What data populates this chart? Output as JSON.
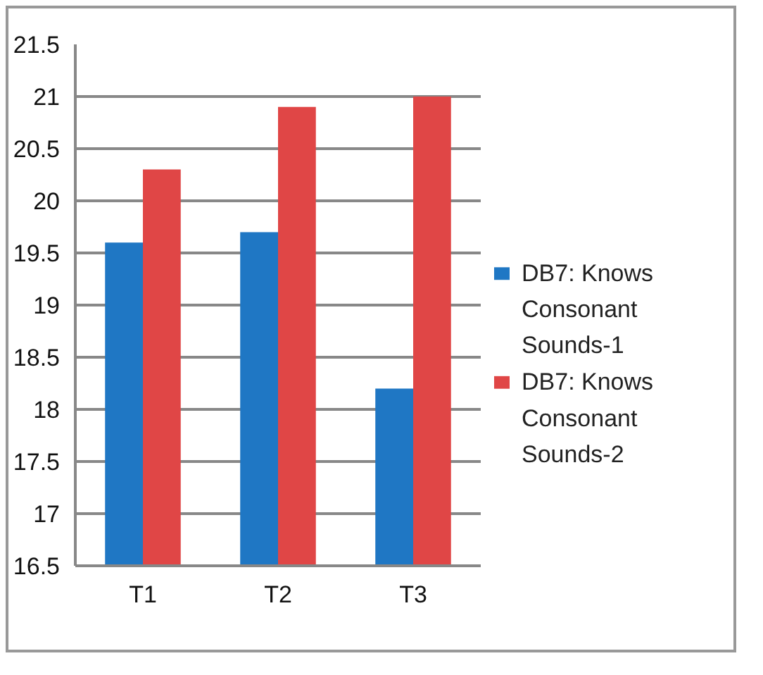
{
  "chart_data": {
    "type": "bar",
    "categories": [
      "T1",
      "T2",
      "T3"
    ],
    "series": [
      {
        "name": "DB7: Knows Consonant Sounds-1",
        "color": "#1f77c4",
        "values": [
          19.6,
          19.7,
          18.2
        ]
      },
      {
        "name": "DB7: Knows Consonant Sounds-2",
        "color": "#e04646",
        "values": [
          20.3,
          20.9,
          21.0
        ]
      }
    ],
    "ylim": [
      16.5,
      21.5
    ],
    "yticks": [
      16.5,
      17,
      17.5,
      18,
      18.5,
      19,
      19.5,
      20,
      20.5,
      21,
      21.5
    ],
    "grid": "y",
    "legend": "right"
  }
}
